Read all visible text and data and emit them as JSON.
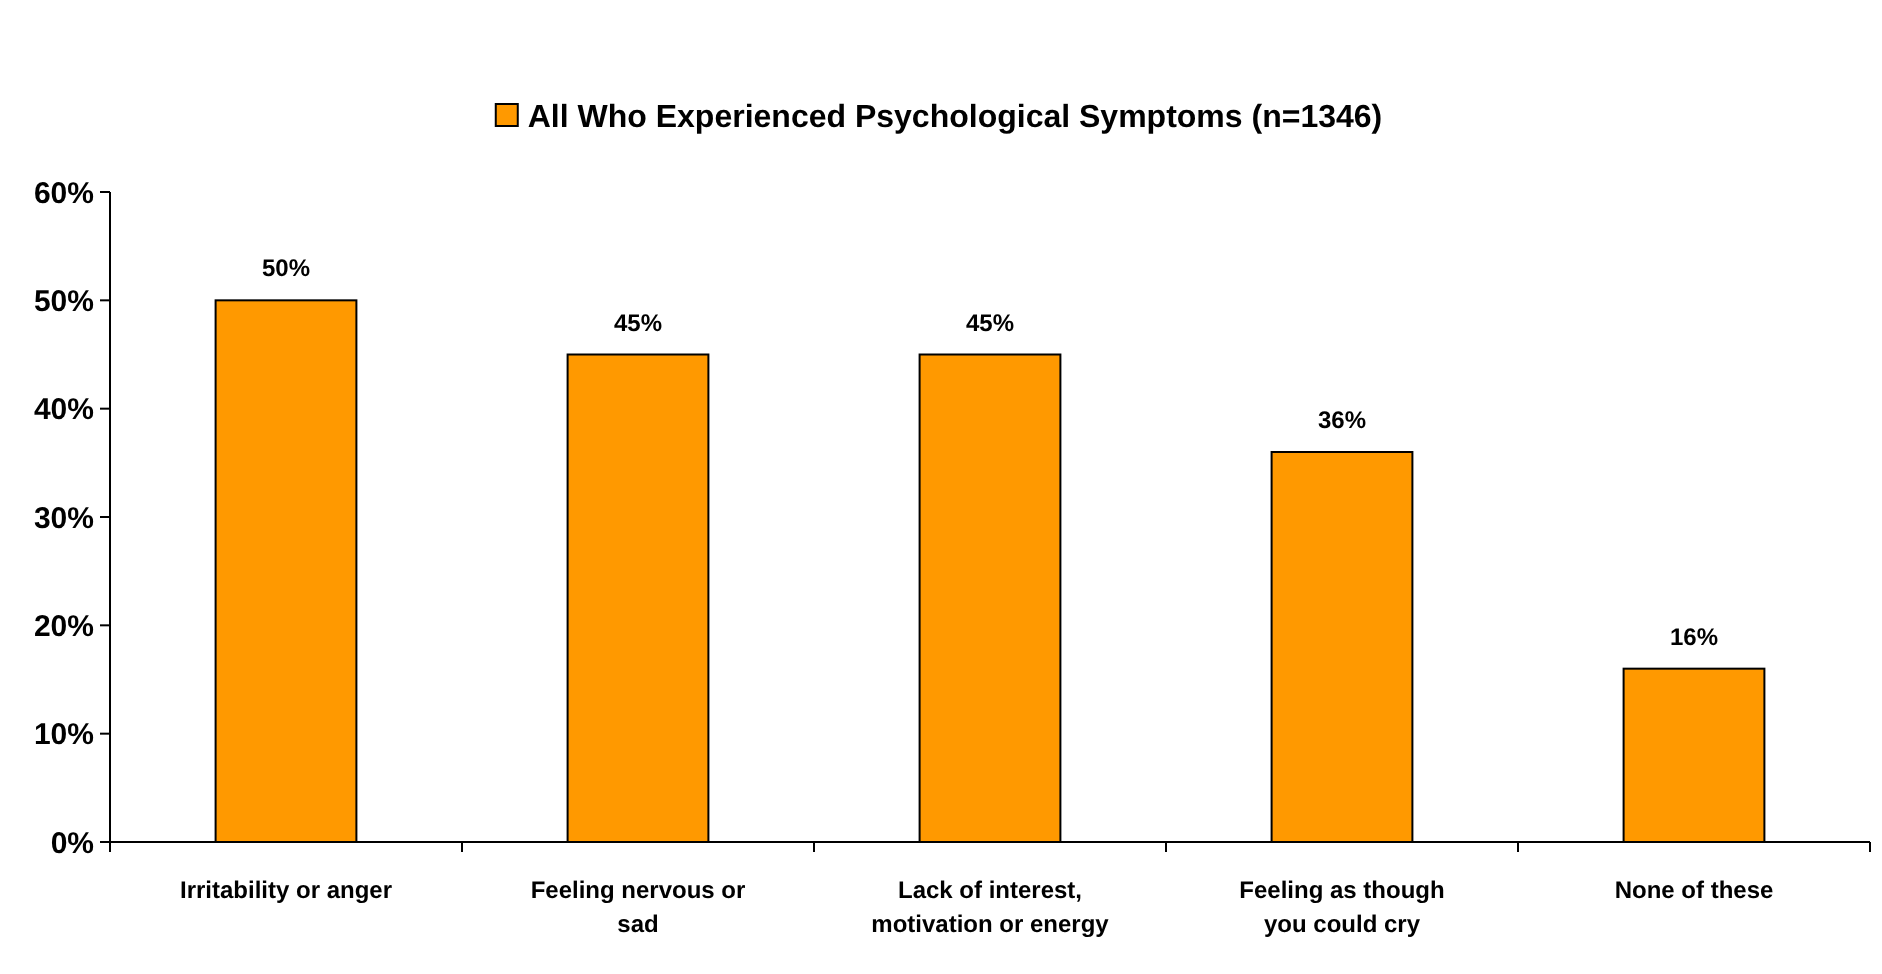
{
  "chart_data": {
    "type": "bar",
    "categories": [
      "Irritability or anger",
      "Feeling nervous or sad",
      "Lack of interest, motivation or energy",
      "Feeling as though you could cry",
      "None of these"
    ],
    "series": [
      {
        "name": "All Who Experienced Psychological Symptoms (n=1346)",
        "color": "#ff9900",
        "values": [
          50,
          45,
          45,
          36,
          16
        ]
      }
    ],
    "value_labels": [
      "50%",
      "45%",
      "45%",
      "36%",
      "16%"
    ],
    "ylim": [
      0,
      60
    ],
    "yticks": [
      {
        "value": 0,
        "label": "0%"
      },
      {
        "value": 10,
        "label": "10%"
      },
      {
        "value": 20,
        "label": "20%"
      },
      {
        "value": 30,
        "label": "30%"
      },
      {
        "value": 40,
        "label": "40%"
      },
      {
        "value": 50,
        "label": "50%"
      },
      {
        "value": 60,
        "label": "60%"
      }
    ],
    "grid": false,
    "legend": "top"
  }
}
